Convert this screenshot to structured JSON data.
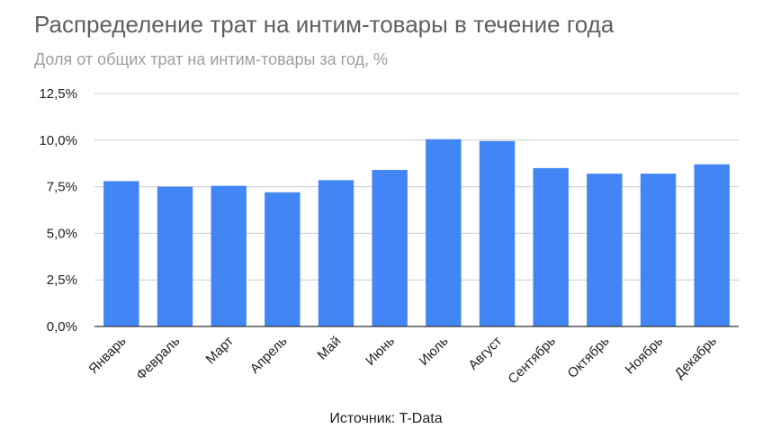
{
  "chart_data": {
    "type": "bar",
    "title": "Распределение трат на интим-товары в течение года",
    "subtitle": "Доля от общих трат на интим-товары за год, %",
    "categories": [
      "Январь",
      "Февраль",
      "Март",
      "Апрель",
      "Май",
      "Июнь",
      "Июль",
      "Август",
      "Сентябрь",
      "Октябрь",
      "Ноябрь",
      "Декабрь"
    ],
    "values": [
      7.8,
      7.5,
      7.55,
      7.2,
      7.85,
      8.4,
      10.05,
      9.95,
      8.5,
      8.2,
      8.2,
      8.7
    ],
    "ylim": [
      0,
      12.5
    ],
    "yticks": [
      "0,0%",
      "2,5%",
      "5,0%",
      "7,5%",
      "10,0%",
      "12,5%"
    ],
    "ytick_values": [
      0,
      2.5,
      5,
      7.5,
      10,
      12.5
    ],
    "grid": true,
    "bar_color": "#4285f4",
    "source": "Источник: T-Data"
  }
}
